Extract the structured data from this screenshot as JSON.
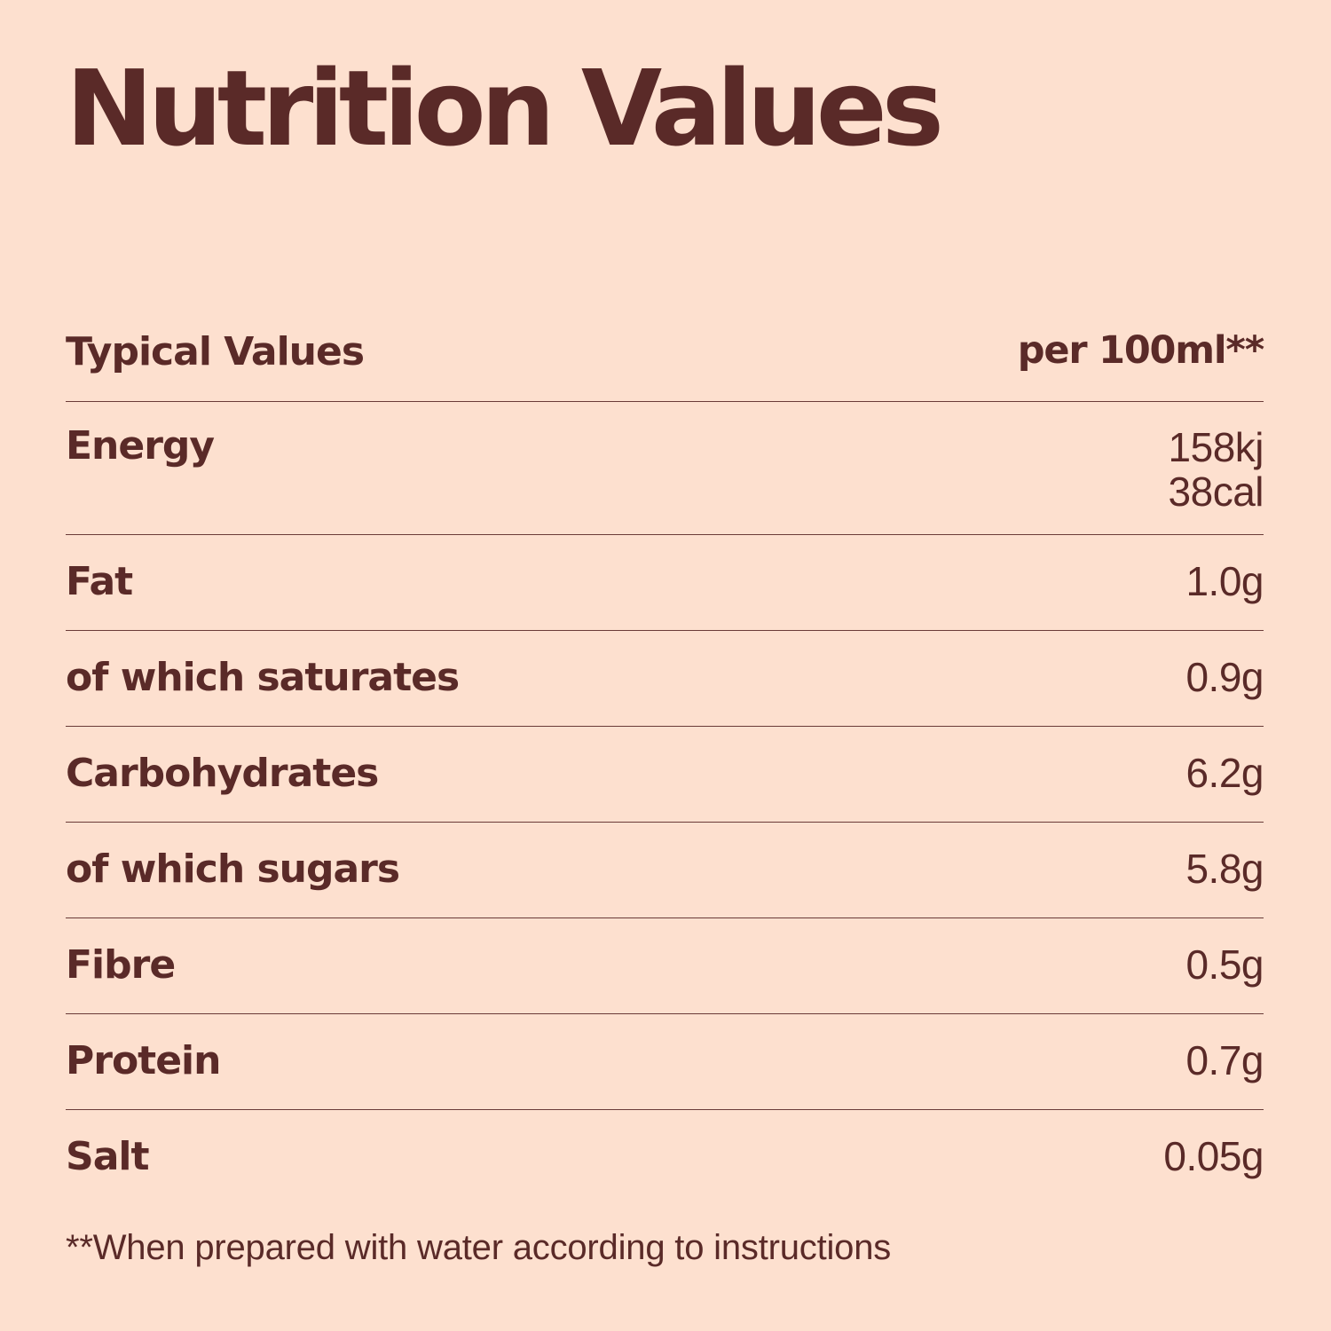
{
  "title": "Nutrition Values",
  "table": {
    "header": {
      "label": "Typical Values",
      "value": "per 100ml**"
    },
    "rows": [
      {
        "label": "Energy",
        "values": [
          "158kj",
          "38cal"
        ]
      },
      {
        "label": "Fat",
        "value": "1.0g"
      },
      {
        "label": "of which saturates",
        "value": "0.9g"
      },
      {
        "label": "Carbohydrates",
        "value": "6.2g"
      },
      {
        "label": "of which sugars",
        "value": "5.8g"
      },
      {
        "label": "Fibre",
        "value": "0.5g"
      },
      {
        "label": "Protein",
        "value": "0.7g"
      },
      {
        "label": "Salt",
        "value": "0.05g"
      }
    ]
  },
  "footnote": "**When prepared with water according to instructions",
  "colors": {
    "background": "#fde0cf",
    "text": "#5a2a28",
    "divider": "#6a3b38"
  }
}
